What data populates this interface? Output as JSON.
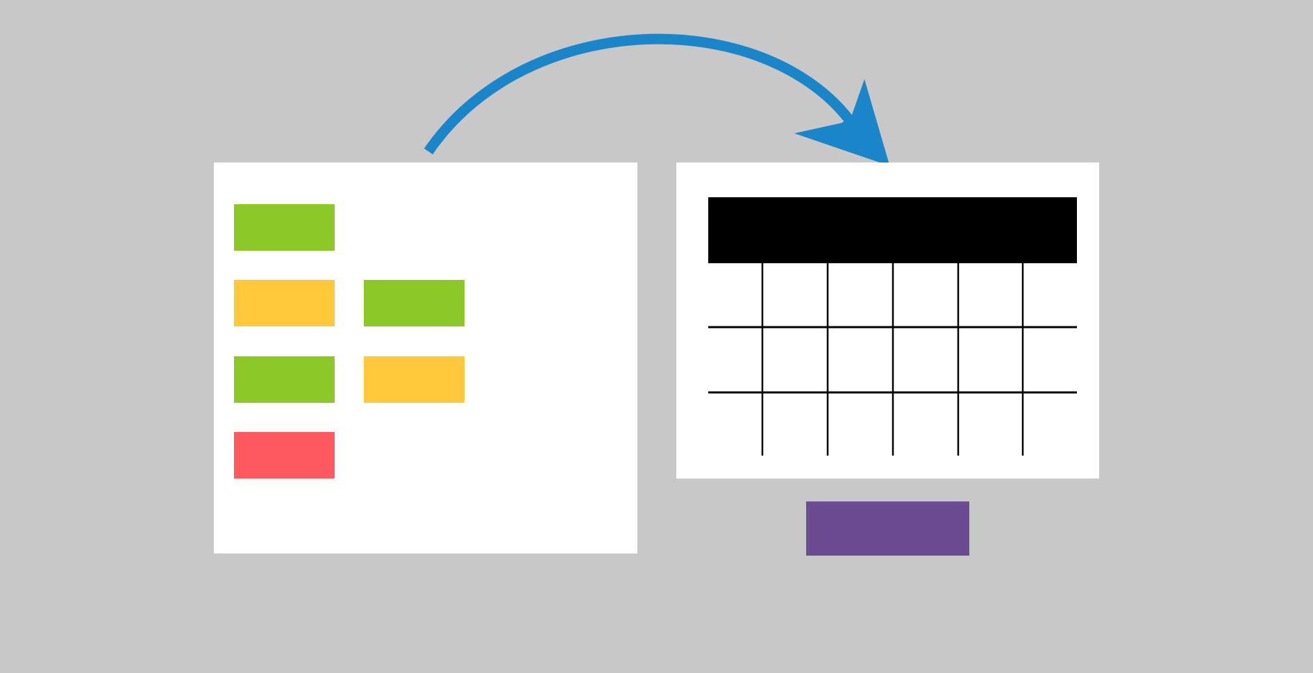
{
  "colors": {
    "background": "#c8c8c8",
    "panel": "#ffffff",
    "arrow": "#1a85c8",
    "green": "#8cc928",
    "yellow": "#ffc93b",
    "red": "#ff5a5f",
    "purple": "#6b4c91",
    "table_header": "#000000",
    "table_lines": "#000000"
  },
  "arrow": {
    "icon": "curved-arrow-icon"
  },
  "board": {
    "tiles": [
      {
        "status": "green"
      },
      {
        "status": "yellow"
      },
      {
        "status": "green"
      },
      {
        "status": "green"
      },
      {
        "status": "yellow"
      },
      {
        "status": "red"
      }
    ]
  },
  "table": {
    "rows": 3,
    "columns": 6,
    "has_header": true
  },
  "action_button": {
    "color": "purple"
  }
}
